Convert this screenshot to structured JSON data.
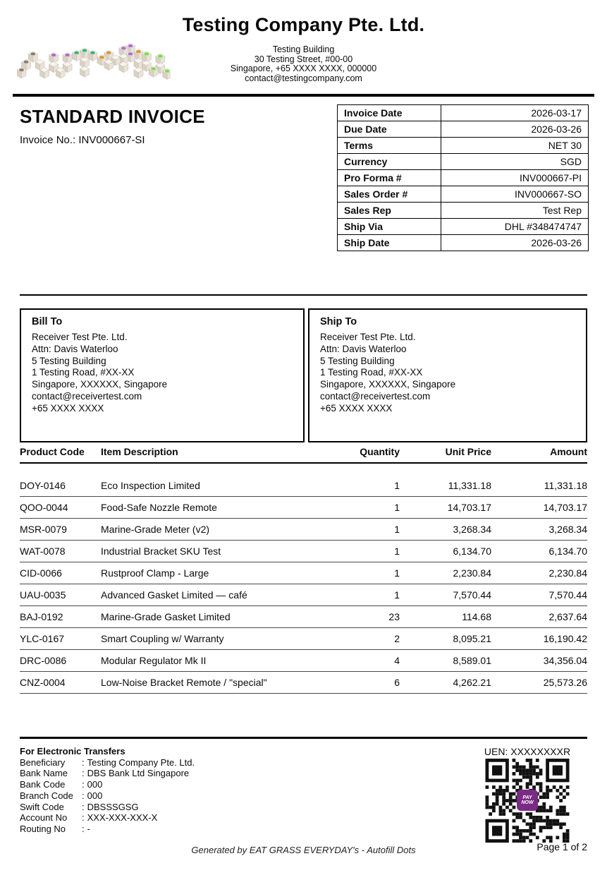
{
  "header": {
    "company_name": "Testing Company Pte. Ltd.",
    "address_lines": [
      "Testing Building",
      "30 Testing Street, #00-00",
      "Singapore, +65 XXXX XXXX, 000000",
      "contact@testingcompany.com"
    ],
    "logo": {
      "icon": "autofill-blocks-logo",
      "dot_colors": [
        "#8d7a6f",
        "#b06ad4",
        "#3bb273",
        "#e0922f",
        "#7ddd44"
      ]
    }
  },
  "invoice": {
    "title": "STANDARD INVOICE",
    "number_line": "Invoice No.: INV000667-SI",
    "meta": [
      {
        "label": "Invoice Date",
        "value": "2026-03-17"
      },
      {
        "label": "Due Date",
        "value": "2026-03-26"
      },
      {
        "label": "Terms",
        "value": "NET 30"
      },
      {
        "label": "Currency",
        "value": "SGD"
      },
      {
        "label": "Pro Forma #",
        "value": "INV000667-PI"
      },
      {
        "label": "Sales Order #",
        "value": "INV000667-SO"
      },
      {
        "label": "Sales Rep",
        "value": "Test Rep"
      },
      {
        "label": "Ship Via",
        "value": "DHL #348474747"
      },
      {
        "label": "Ship Date",
        "value": "2026-03-26"
      }
    ]
  },
  "bill_to": {
    "title": "Bill To",
    "lines": [
      "Receiver Test Pte. Ltd.",
      "Attn: Davis Waterloo",
      "5 Testing Building",
      "1 Testing Road, #XX-XX",
      "Singapore, XXXXXX, Singapore",
      "contact@receivertest.com",
      "+65 XXXX XXXX"
    ]
  },
  "ship_to": {
    "title": "Ship To",
    "lines": [
      "Receiver Test Pte. Ltd.",
      "Attn: Davis Waterloo",
      "5 Testing Building",
      "1 Testing Road, #XX-XX",
      "Singapore, XXXXXX, Singapore",
      "contact@receivertest.com",
      "+65 XXXX XXXX"
    ]
  },
  "items": {
    "columns": [
      "Product Code",
      "Item Description",
      "Quantity",
      "Unit Price",
      "Amount"
    ],
    "rows": [
      [
        "DOY-0146",
        "Eco Inspection Limited",
        "1",
        "11,331.18",
        "11,331.18"
      ],
      [
        "QOO-0044",
        "Food-Safe Nozzle Remote",
        "1",
        "14,703.17",
        "14,703.17"
      ],
      [
        "MSR-0079",
        "Marine-Grade Meter (v2)",
        "1",
        "3,268.34",
        "3,268.34"
      ],
      [
        "WAT-0078",
        "Industrial Bracket SKU Test",
        "1",
        "6,134.70",
        "6,134.70"
      ],
      [
        "CID-0066",
        "Rustproof Clamp - Large",
        "1",
        "2,230.84",
        "2,230.84"
      ],
      [
        "UAU-0035",
        "Advanced Gasket Limited — café",
        "1",
        "7,570.44",
        "7,570.44"
      ],
      [
        "BAJ-0192",
        "Marine-Grade Gasket Limited",
        "23",
        "114.68",
        "2,637.64"
      ],
      [
        "YLC-0167",
        "Smart Coupling w/ Warranty",
        "2",
        "8,095.21",
        "16,190.42"
      ],
      [
        "DRC-0086",
        "Modular Regulator Mk II",
        "4",
        "8,589.01",
        "34,356.04"
      ],
      [
        "CNZ-0004",
        "Low-Noise Bracket Remote / \"special\"",
        "6",
        "4,262.21",
        "25,573.26"
      ]
    ]
  },
  "footer": {
    "bank": {
      "title": "For Electronic Transfers",
      "separator": ":",
      "rows": [
        {
          "label": "Beneficiary",
          "value": "Testing Company Pte. Ltd."
        },
        {
          "label": "Bank Name",
          "value": "DBS Bank Ltd Singapore"
        },
        {
          "label": "Bank Code",
          "value": "000"
        },
        {
          "label": "Branch Code",
          "value": "000"
        },
        {
          "label": "Swift Code",
          "value": "DBSSSGSG"
        },
        {
          "label": "Account No",
          "value": "XXX-XXX-XXX-X"
        },
        {
          "label": "Routing No",
          "value": "-"
        }
      ]
    },
    "uen": "UEN: XXXXXXXXR",
    "qr": {
      "icon": "paynow-qr-code",
      "center_label": "PAY NOW",
      "accent_color": "#7a2b85"
    },
    "page_indicator": "Page 1 of 2",
    "generated_by": "Generated by EAT GRASS EVERYDAY's - Autofill Dots"
  }
}
